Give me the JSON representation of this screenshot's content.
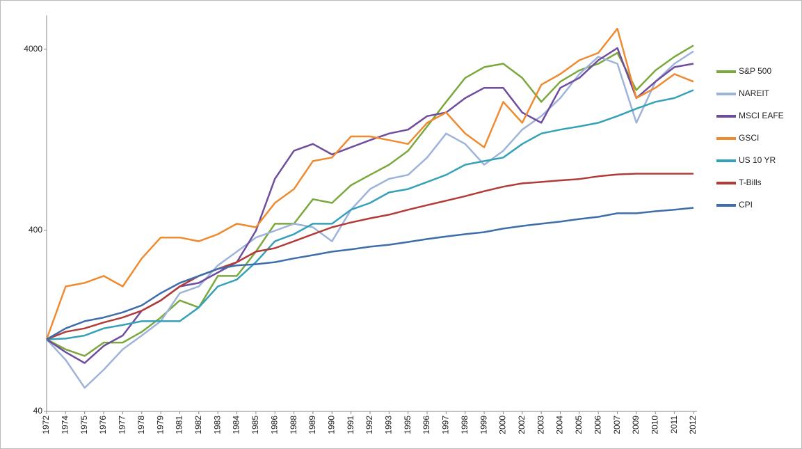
{
  "chart_data": {
    "type": "line",
    "log_scale": true,
    "legend": "right",
    "grid": false,
    "categories": [
      "1972",
      "1974",
      "1975",
      "1976",
      "1977",
      "1978",
      "1979",
      "1981",
      "1982",
      "1983",
      "1984",
      "1985",
      "1986",
      "1988",
      "1989",
      "1990",
      "1991",
      "1992",
      "1993",
      "1995",
      "1996",
      "1997",
      "1998",
      "1999",
      "2000",
      "2002",
      "2003",
      "2004",
      "2005",
      "2006",
      "2007",
      "2009",
      "2010",
      "2011",
      "2012"
    ],
    "ylim": [
      40,
      6000
    ],
    "yticks": [
      40,
      400,
      4000
    ],
    "series": [
      {
        "name": "S&P 500",
        "color": "#7aa83c",
        "values": [
          100,
          88,
          81,
          96,
          96,
          110,
          132,
          164,
          150,
          224,
          224,
          305,
          435,
          435,
          594,
          567,
          710,
          810,
          922,
          1100,
          1500,
          2050,
          2780,
          3190,
          3330,
          2780,
          2050,
          2650,
          3060,
          3330,
          3820,
          2380,
          3060,
          3640,
          4200
        ]
      },
      {
        "name": "NAREIT",
        "color": "#9db3da",
        "values": [
          100,
          77,
          54,
          68,
          88,
          105,
          126,
          180,
          196,
          256,
          305,
          365,
          398,
          435,
          416,
          348,
          520,
          676,
          770,
          810,
          1010,
          1370,
          1200,
          922,
          1100,
          1440,
          1710,
          2150,
          2920,
          3640,
          3330,
          1570,
          2650,
          3330,
          3900
        ]
      },
      {
        "name": "MSCI EAFE",
        "color": "#6e4c9e",
        "values": [
          100,
          85,
          74,
          92,
          105,
          144,
          164,
          196,
          205,
          234,
          267,
          398,
          770,
          1100,
          1200,
          1050,
          1150,
          1260,
          1370,
          1440,
          1710,
          1790,
          2150,
          2450,
          2450,
          1790,
          1570,
          2450,
          2780,
          3480,
          4060,
          2150,
          2650,
          3190,
          3330
        ]
      },
      {
        "name": "GSCI",
        "color": "#ee8a2f",
        "values": [
          100,
          196,
          205,
          224,
          196,
          280,
          365,
          365,
          348,
          381,
          435,
          416,
          567,
          676,
          965,
          1010,
          1320,
          1320,
          1260,
          1200,
          1570,
          1790,
          1370,
          1150,
          2050,
          1570,
          2550,
          2920,
          3480,
          3820,
          5200,
          2150,
          2450,
          2920,
          2650
        ]
      },
      {
        "name": "US 10 YR",
        "color": "#35a1b9",
        "values": [
          100,
          101,
          105,
          115,
          120,
          126,
          126,
          126,
          150,
          196,
          214,
          267,
          348,
          381,
          435,
          435,
          520,
          567,
          648,
          676,
          740,
          810,
          922,
          965,
          1010,
          1200,
          1370,
          1440,
          1500,
          1570,
          1710,
          1880,
          2050,
          2150,
          2380
        ]
      },
      {
        "name": "T-Bills",
        "color": "#b23b37",
        "values": [
          100,
          110,
          115,
          124,
          132,
          144,
          164,
          196,
          224,
          245,
          267,
          305,
          319,
          348,
          381,
          416,
          442,
          466,
          488,
          520,
          551,
          583,
          618,
          658,
          697,
          727,
          740,
          755,
          768,
          795,
          814,
          822,
          822,
          822,
          822
        ]
      },
      {
        "name": "CPI",
        "color": "#3e6dab",
        "values": [
          100,
          115,
          126,
          132,
          141,
          154,
          180,
          205,
          224,
          245,
          256,
          260,
          267,
          280,
          292,
          305,
          314,
          325,
          333,
          345,
          358,
          370,
          381,
          391,
          409,
          423,
          435,
          447,
          462,
          475,
          497,
          497,
          510,
          520,
          533
        ]
      }
    ]
  }
}
